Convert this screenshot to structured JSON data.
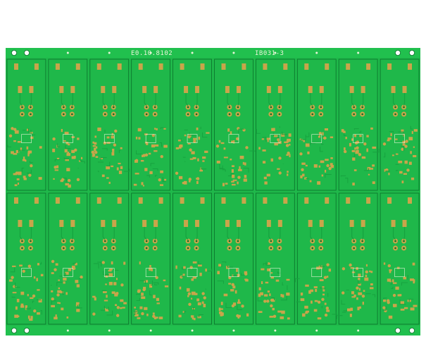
{
  "image": {
    "subject": "PCB panel",
    "colors": {
      "background": "#ffffff",
      "board": "#1fb84a",
      "board_dark": "#17a23f",
      "copper": "#c9a54a",
      "silkscreen": "#e8f5d8",
      "outline": "#0b6f2a"
    }
  },
  "panel": {
    "columns": 10,
    "rows": 2,
    "silk_label_left": "E0.10.8102",
    "silk_label_right": "IB031-3"
  }
}
